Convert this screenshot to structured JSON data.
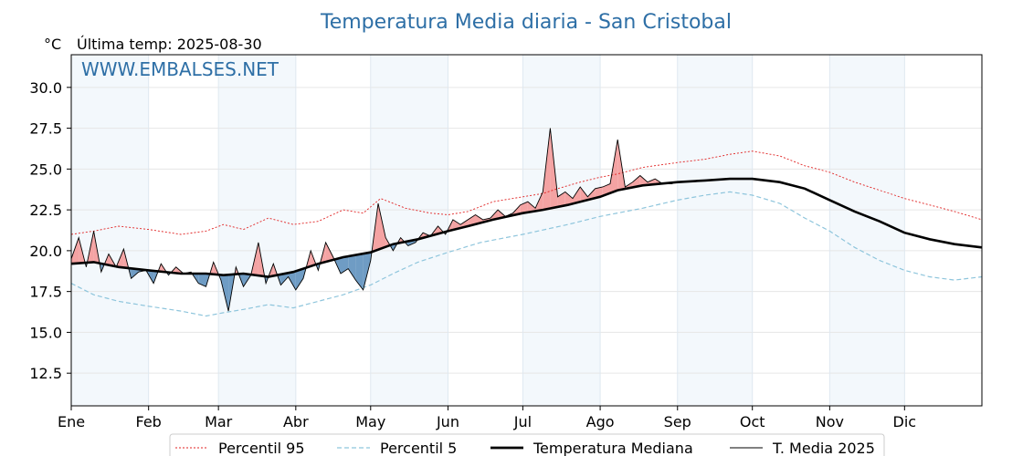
{
  "chart_data": {
    "type": "line",
    "title": "Temperatura Media diaria - San Cristobal",
    "unit_label": "°C",
    "subtitle": "Última temp: 2025-08-30",
    "watermark": "WWW.EMBALSES.NET",
    "ylim": [
      10.5,
      32.0
    ],
    "yticks": [
      12.5,
      15.0,
      17.5,
      20.0,
      22.5,
      25.0,
      27.5,
      30.0
    ],
    "ytick_labels": [
      "12.5",
      "15.0",
      "17.5",
      "20.0",
      "22.5",
      "25.0",
      "27.5",
      "30.0"
    ],
    "xlim": [
      1,
      366
    ],
    "months": [
      {
        "label": "Ene",
        "day": 1
      },
      {
        "label": "Feb",
        "day": 32
      },
      {
        "label": "Mar",
        "day": 60
      },
      {
        "label": "Abr",
        "day": 91
      },
      {
        "label": "May",
        "day": 121
      },
      {
        "label": "Jun",
        "day": 152
      },
      {
        "label": "Jul",
        "day": 182
      },
      {
        "label": "Ago",
        "day": 213
      },
      {
        "label": "Sep",
        "day": 244
      },
      {
        "label": "Oct",
        "day": 274
      },
      {
        "label": "Nov",
        "day": 305
      },
      {
        "label": "Dic",
        "day": 335
      }
    ],
    "grid": true,
    "legend_position": "bottom",
    "legend": [
      {
        "label": "Percentil 95",
        "color": "#e02020",
        "style": "dotted"
      },
      {
        "label": "Percentil 5",
        "color": "#8ec5dc",
        "style": "dashed"
      },
      {
        "label": "Temperatura Mediana",
        "color": "#000000",
        "style": "thick"
      },
      {
        "label": "T. Media 2025",
        "color": "#000000",
        "style": "thin"
      }
    ],
    "fill_above_color": "#f4a3a3",
    "fill_below_color": "#6f9cc4",
    "shade_color": "#f3f8fc",
    "series": [
      {
        "name": "Percentil 95",
        "x": [
          1,
          10,
          20,
          32,
          45,
          55,
          62,
          70,
          80,
          90,
          100,
          110,
          118,
          125,
          135,
          145,
          152,
          160,
          170,
          182,
          190,
          196,
          205,
          213,
          220,
          230,
          244,
          255,
          265,
          274,
          285,
          295,
          305,
          315,
          325,
          335,
          345,
          355,
          366
        ],
        "y": [
          21.0,
          21.2,
          21.5,
          21.3,
          21.0,
          21.2,
          21.6,
          21.3,
          22.0,
          21.6,
          21.8,
          22.5,
          22.3,
          23.2,
          22.6,
          22.3,
          22.2,
          22.4,
          23.0,
          23.3,
          23.5,
          23.8,
          24.2,
          24.5,
          24.7,
          25.1,
          25.4,
          25.6,
          25.9,
          26.1,
          25.8,
          25.2,
          24.8,
          24.2,
          23.7,
          23.2,
          22.8,
          22.4,
          21.9
        ]
      },
      {
        "name": "Percentil 5",
        "x": [
          1,
          10,
          20,
          32,
          45,
          55,
          62,
          70,
          80,
          90,
          100,
          110,
          121,
          130,
          140,
          152,
          165,
          182,
          200,
          213,
          230,
          244,
          255,
          265,
          274,
          285,
          295,
          305,
          315,
          325,
          335,
          345,
          355,
          366
        ],
        "y": [
          18.0,
          17.3,
          16.9,
          16.6,
          16.3,
          16.0,
          16.2,
          16.4,
          16.7,
          16.5,
          16.9,
          17.3,
          17.9,
          18.6,
          19.3,
          19.9,
          20.5,
          21.0,
          21.6,
          22.1,
          22.6,
          23.1,
          23.4,
          23.6,
          23.4,
          22.9,
          22.0,
          21.2,
          20.2,
          19.4,
          18.8,
          18.4,
          18.2,
          18.4
        ]
      },
      {
        "name": "Temperatura Mediana",
        "x": [
          1,
          10,
          20,
          32,
          45,
          55,
          62,
          70,
          80,
          90,
          100,
          110,
          121,
          130,
          140,
          152,
          160,
          170,
          182,
          190,
          200,
          213,
          220,
          230,
          244,
          255,
          265,
          274,
          285,
          295,
          305,
          315,
          325,
          335,
          345,
          355,
          366
        ],
        "y": [
          19.2,
          19.3,
          19.0,
          18.8,
          18.6,
          18.6,
          18.5,
          18.6,
          18.4,
          18.7,
          19.2,
          19.6,
          19.9,
          20.4,
          20.7,
          21.2,
          21.5,
          21.9,
          22.3,
          22.5,
          22.8,
          23.3,
          23.7,
          24.0,
          24.2,
          24.3,
          24.4,
          24.4,
          24.2,
          23.8,
          23.1,
          22.4,
          21.8,
          21.1,
          20.7,
          20.4,
          20.2
        ]
      },
      {
        "name": "T. Media 2025",
        "x": [
          1,
          4,
          7,
          10,
          13,
          16,
          19,
          22,
          25,
          28,
          31,
          34,
          37,
          40,
          43,
          46,
          49,
          52,
          55,
          58,
          61,
          64,
          67,
          70,
          73,
          76,
          79,
          82,
          85,
          88,
          91,
          94,
          97,
          100,
          103,
          106,
          109,
          112,
          115,
          118,
          121,
          124,
          127,
          130,
          133,
          136,
          139,
          142,
          145,
          148,
          151,
          154,
          157,
          160,
          163,
          166,
          169,
          172,
          175,
          178,
          181,
          184,
          187,
          190,
          193,
          196,
          199,
          202,
          205,
          208,
          211,
          214,
          217,
          220,
          223,
          226,
          229,
          232,
          235,
          238,
          242
        ],
        "y": [
          19.5,
          20.8,
          19.0,
          21.2,
          18.7,
          19.8,
          19.0,
          20.1,
          18.3,
          18.7,
          18.8,
          18.0,
          19.2,
          18.5,
          19.0,
          18.6,
          18.7,
          18.0,
          17.8,
          19.3,
          18.2,
          16.3,
          19.0,
          17.8,
          18.5,
          20.5,
          18.0,
          19.2,
          17.9,
          18.4,
          17.6,
          18.3,
          20.0,
          18.8,
          20.5,
          19.6,
          18.6,
          18.9,
          18.2,
          17.6,
          19.4,
          22.9,
          20.8,
          20.0,
          20.8,
          20.3,
          20.5,
          21.1,
          20.9,
          21.5,
          21.0,
          21.9,
          21.6,
          21.9,
          22.2,
          21.9,
          22.0,
          22.5,
          22.1,
          22.3,
          22.8,
          23.0,
          22.6,
          23.6,
          27.5,
          23.3,
          23.6,
          23.2,
          23.9,
          23.3,
          23.8,
          23.9,
          24.1,
          26.8,
          23.9,
          24.2,
          24.6,
          24.2,
          24.4,
          24.1,
          24.1
        ]
      }
    ]
  }
}
